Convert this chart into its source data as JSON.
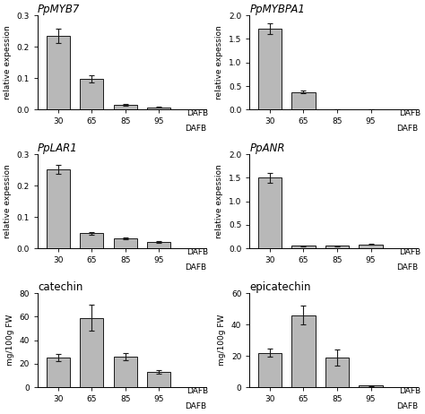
{
  "subplots": [
    {
      "title": "PpMYB7",
      "title_italic": true,
      "ylabel": "relative expession",
      "ylim": [
        0,
        0.3
      ],
      "yticks": [
        0.0,
        0.1,
        0.2,
        0.3
      ],
      "values": [
        0.235,
        0.098,
        0.015,
        0.008
      ],
      "errors": [
        0.022,
        0.012,
        0.003,
        0.002
      ],
      "categories": [
        "30",
        "65",
        "85",
        "95"
      ],
      "dafb_label": true
    },
    {
      "title": "PpMYBPA1",
      "title_italic": true,
      "ylabel": "relative expession",
      "ylim": [
        0,
        2.0
      ],
      "yticks": [
        0.0,
        0.5,
        1.0,
        1.5,
        2.0
      ],
      "values": [
        1.72,
        0.37,
        0.01,
        0.005
      ],
      "errors": [
        0.12,
        0.03,
        0.005,
        0.002
      ],
      "categories": [
        "30",
        "65",
        "85",
        "95"
      ],
      "dafb_label": true
    },
    {
      "title": "PpLAR1",
      "title_italic": true,
      "ylabel": "relative expession",
      "ylim": [
        0,
        0.3
      ],
      "yticks": [
        0.0,
        0.1,
        0.2,
        0.3
      ],
      "values": [
        0.252,
        0.048,
        0.033,
        0.02
      ],
      "errors": [
        0.015,
        0.004,
        0.003,
        0.003
      ],
      "categories": [
        "30",
        "65",
        "85",
        "95"
      ],
      "dafb_label": true
    },
    {
      "title": "PpANR",
      "title_italic": true,
      "ylabel": "relative expession",
      "ylim": [
        0,
        2.0
      ],
      "yticks": [
        0.0,
        0.5,
        1.0,
        1.5,
        2.0
      ],
      "values": [
        1.5,
        0.055,
        0.055,
        0.09
      ],
      "errors": [
        0.1,
        0.008,
        0.008,
        0.012
      ],
      "categories": [
        "30",
        "65",
        "85",
        "95"
      ],
      "dafb_label": true
    },
    {
      "title": "catechin",
      "title_italic": false,
      "ylabel": "mg/100g FW",
      "ylim": [
        0,
        80
      ],
      "yticks": [
        0,
        20,
        40,
        60,
        80
      ],
      "values": [
        25,
        59,
        26,
        13
      ],
      "errors": [
        3,
        11,
        3,
        1.5
      ],
      "categories": [
        "30",
        "65",
        "85",
        "95"
      ],
      "dafb_label": true
    },
    {
      "title": "epicatechin",
      "title_italic": false,
      "ylabel": "mg/100g FW",
      "ylim": [
        0,
        60
      ],
      "yticks": [
        0,
        20,
        40,
        60
      ],
      "values": [
        22,
        46,
        19,
        1
      ],
      "errors": [
        2.5,
        6,
        5,
        0.3
      ],
      "categories": [
        "30",
        "65",
        "85",
        "95"
      ],
      "dafb_label": true
    }
  ],
  "bar_color": "#b8b8b8",
  "bar_edgecolor": "#1a1a1a",
  "bar_width": 0.7,
  "capsize": 2.5,
  "error_color": "#1a1a1a",
  "background_color": "#ffffff",
  "tick_fontsize": 6.5,
  "label_fontsize": 6.5,
  "title_fontsize": 8.5
}
